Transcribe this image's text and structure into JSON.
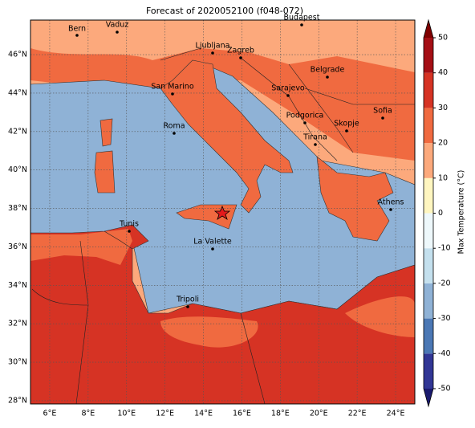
{
  "title": "Forecast of 2020052100 (f048-072)",
  "map": {
    "xlim": [
      5,
      25
    ],
    "ylim": [
      27.83,
      47.8
    ],
    "xticks": [
      {
        "value": 6,
        "label": "6°E"
      },
      {
        "value": 8,
        "label": "8°E"
      },
      {
        "value": 10,
        "label": "10°E"
      },
      {
        "value": 12,
        "label": "12°E"
      },
      {
        "value": 14,
        "label": "14°E"
      },
      {
        "value": 16,
        "label": "16°E"
      },
      {
        "value": 18,
        "label": "18°E"
      },
      {
        "value": 20,
        "label": "20°E"
      },
      {
        "value": 22,
        "label": "22°E"
      },
      {
        "value": 24,
        "label": "24°E"
      }
    ],
    "yticks": [
      {
        "value": 28,
        "label": "28°N"
      },
      {
        "value": 30,
        "label": "30°N"
      },
      {
        "value": 32,
        "label": "32°N"
      },
      {
        "value": 34,
        "label": "34°N"
      },
      {
        "value": 36,
        "label": "36°N"
      },
      {
        "value": 38,
        "label": "38°N"
      },
      {
        "value": 40,
        "label": "40°N"
      },
      {
        "value": 42,
        "label": "42°N"
      },
      {
        "value": 44,
        "label": "44°N"
      },
      {
        "value": 46,
        "label": "46°N"
      }
    ],
    "cities": [
      "Bern",
      "Vaduz",
      "Budapest",
      "Ljubljana",
      "Zagreb",
      "Belgrade",
      "San Marino",
      "Sarajevo",
      "Sofia",
      "Podgorica",
      "Skopje",
      "Roma",
      "Tirana",
      "Athens",
      "Tunis",
      "La Valette",
      "Tripoli"
    ]
  },
  "colorbar": {
    "label": "Max Temperature (°C)",
    "lim": [
      -50,
      50
    ],
    "ticks": [
      -50,
      -40,
      -30,
      -20,
      -10,
      0,
      10,
      20,
      30,
      40,
      50
    ],
    "colors": [
      "#313695",
      "#4b78b5",
      "#8fb2d6",
      "#c4e0ee",
      "#eef8fb",
      "#fff6c0",
      "#fca97c",
      "#f06a40",
      "#d63324",
      "#a50f15"
    ],
    "under_color": "#1a1a6e",
    "over_color": "#7f0000"
  }
}
